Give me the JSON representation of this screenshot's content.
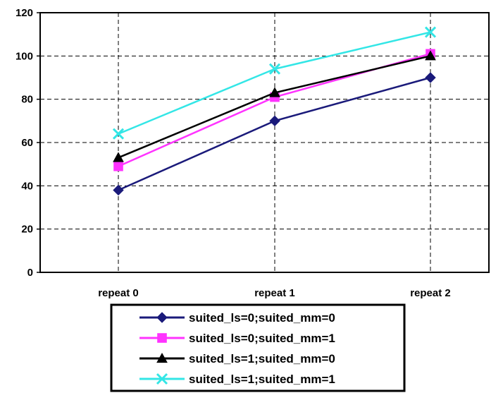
{
  "chart_data": {
    "type": "line",
    "title": "",
    "xlabel": "",
    "ylabel": "",
    "categories": [
      "repeat 0",
      "repeat 1",
      "repeat 2"
    ],
    "ylim": [
      0,
      120
    ],
    "yticks": [
      0,
      20,
      40,
      60,
      80,
      100,
      120
    ],
    "grid": true,
    "legend_position": "bottom",
    "series": [
      {
        "name": "suited_ls=0;suited_mm=0",
        "values": [
          38,
          70,
          90
        ],
        "color": "#1a1a7a",
        "marker": "diamond"
      },
      {
        "name": "suited_ls=0;suited_mm=1",
        "values": [
          49,
          81,
          101
        ],
        "color": "#ff33ff",
        "marker": "square"
      },
      {
        "name": "suited_ls=1;suited_mm=0",
        "values": [
          53,
          83,
          100
        ],
        "color": "#000000",
        "marker": "triangle"
      },
      {
        "name": "suited_ls=1;suited_mm=1",
        "values": [
          64,
          94,
          111
        ],
        "color": "#33e6e6",
        "marker": "x"
      }
    ]
  }
}
